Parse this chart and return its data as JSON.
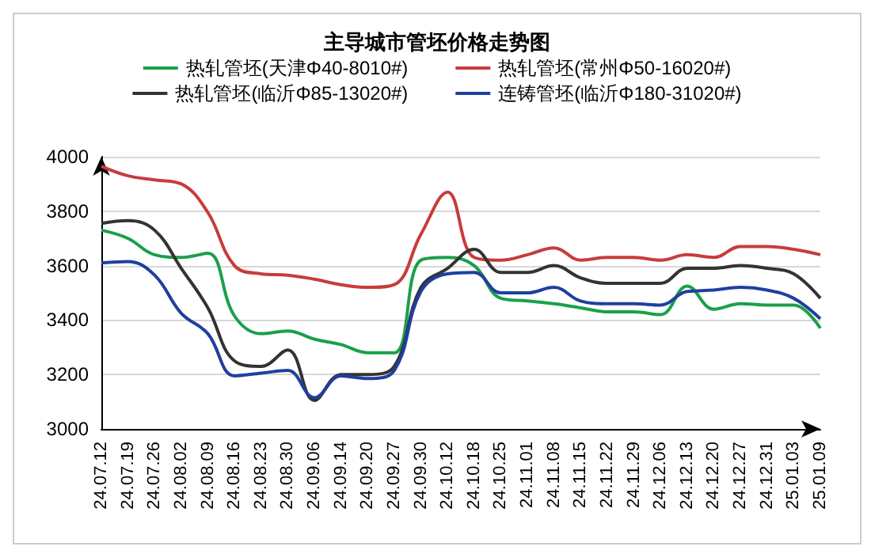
{
  "chart_data": {
    "type": "line",
    "title": "主导城市管坯价格走势图",
    "categories": [
      "24.07.12",
      "24.07.19",
      "24.07.26",
      "24.08.02",
      "24.08.09",
      "24.08.16",
      "24.08.23",
      "24.08.30",
      "24.09.06",
      "24.09.14",
      "24.09.20",
      "24.09.27",
      "24.09.30",
      "24.10.12",
      "24.10.18",
      "24.10.25",
      "24.11.01",
      "24.11.08",
      "24.11.15",
      "24.11.22",
      "24.11.29",
      "24.12.06",
      "24.12.13",
      "24.12.20",
      "24.12.27",
      "24.12.31",
      "25.01.03",
      "25.01.09"
    ],
    "series": [
      {
        "name": "热轧管坯(天津Φ40-8010#)",
        "color": "#1aa04a",
        "values": [
          3730,
          3700,
          3640,
          3630,
          3645,
          3415,
          3350,
          3360,
          3330,
          3310,
          3280,
          3280,
          3620,
          3630,
          3600,
          3480,
          3470,
          3460,
          3445,
          3430,
          3430,
          3420,
          3525,
          3440,
          3460,
          3455,
          3455,
          3370
        ]
      },
      {
        "name": "热轧管坯(常州Φ50-16020#)",
        "color": "#c83c3c",
        "values": [
          3965,
          3930,
          3915,
          3900,
          3795,
          3600,
          3570,
          3565,
          3550,
          3530,
          3520,
          3530,
          3715,
          3870,
          3630,
          3620,
          3640,
          3665,
          3620,
          3630,
          3630,
          3620,
          3640,
          3630,
          3670,
          3670,
          3660,
          3640
        ]
      },
      {
        "name": "热轧管坯(临沂Φ85-13020#)",
        "color": "#333333",
        "values": [
          3755,
          3765,
          3730,
          3590,
          3445,
          3250,
          3230,
          3290,
          3105,
          3200,
          3200,
          3230,
          3520,
          3590,
          3660,
          3575,
          3575,
          3600,
          3555,
          3535,
          3535,
          3535,
          3590,
          3590,
          3600,
          3590,
          3570,
          3480
        ]
      },
      {
        "name": "连铸管坯(临沂Φ180-31020#)",
        "color": "#1f3fa0",
        "values": [
          3610,
          3615,
          3565,
          3425,
          3350,
          3195,
          3205,
          3215,
          3115,
          3195,
          3185,
          3215,
          3505,
          3570,
          3575,
          3500,
          3500,
          3520,
          3470,
          3460,
          3460,
          3455,
          3505,
          3510,
          3520,
          3510,
          3480,
          3405
        ]
      }
    ],
    "ylim": [
      3000,
      4000
    ],
    "yticks": [
      3000,
      3200,
      3400,
      3600,
      3800,
      4000
    ],
    "grid": "y",
    "legend": "top",
    "marker": "none",
    "line_style": "solid"
  }
}
